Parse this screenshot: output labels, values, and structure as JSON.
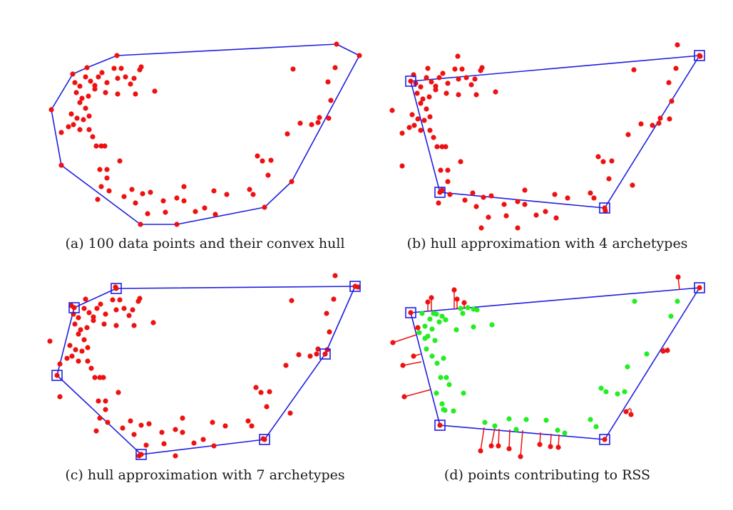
{
  "captions": {
    "a": "(a) 100 data points and their convex hull",
    "b": "(b) hull approximation with 4 archetypes",
    "c": "(c) hull approximation with 7 archetypes",
    "d": "(d) points contributing to RSS"
  },
  "colors": {
    "hull": "#1f1fe0",
    "point": "#ee1111",
    "inside_point": "#22ee22",
    "residual": "#ee1111",
    "archetype_marker": "#1f1fe0"
  }
}
